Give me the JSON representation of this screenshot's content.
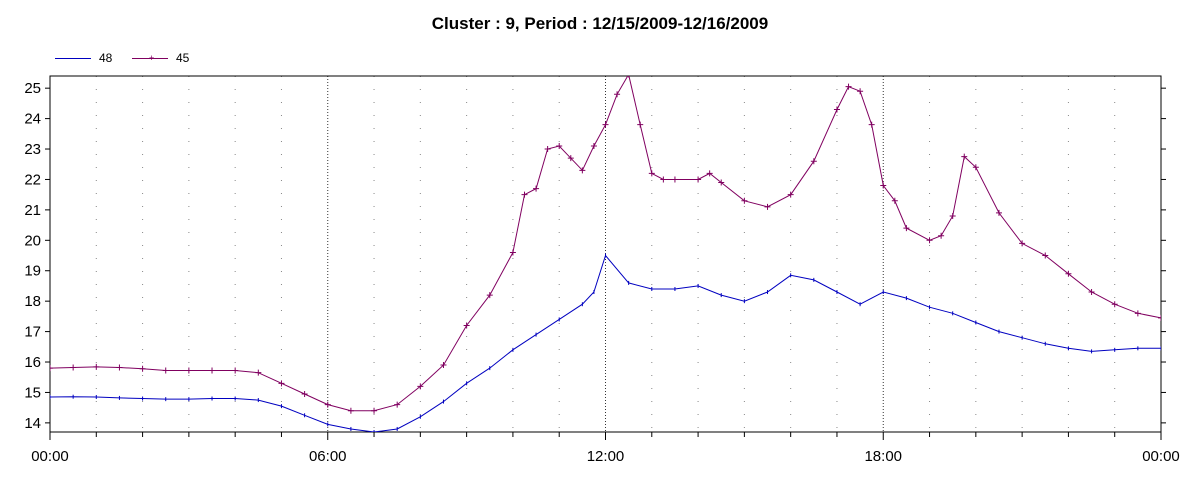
{
  "chart_data": {
    "type": "line",
    "title": "Cluster : 9, Period : 12/15/2009-12/16/2009",
    "xlabel": "",
    "ylabel": "",
    "x_ticks": [
      "00:00",
      "06:00",
      "12:00",
      "18:00",
      "00:00"
    ],
    "x_range_hours": [
      0,
      24
    ],
    "ylim": [
      13.7,
      25.4
    ],
    "y_ticks": [
      14,
      15,
      16,
      17,
      18,
      19,
      20,
      21,
      22,
      23,
      24,
      25
    ],
    "grid": "dotted",
    "legend_position": "top-left",
    "series": [
      {
        "name": "48",
        "color": "#0000c0",
        "marker": "small-tick",
        "points": [
          [
            0,
            14.85
          ],
          [
            0.5,
            14.86
          ],
          [
            1,
            14.85
          ],
          [
            1.5,
            14.82
          ],
          [
            2,
            14.8
          ],
          [
            2.5,
            14.78
          ],
          [
            3,
            14.78
          ],
          [
            3.5,
            14.8
          ],
          [
            4,
            14.8
          ],
          [
            4.5,
            14.75
          ],
          [
            5,
            14.55
          ],
          [
            5.5,
            14.25
          ],
          [
            6,
            13.95
          ],
          [
            6.5,
            13.8
          ],
          [
            7,
            13.7
          ],
          [
            7.5,
            13.8
          ],
          [
            8,
            14.2
          ],
          [
            8.5,
            14.7
          ],
          [
            9,
            15.3
          ],
          [
            9.5,
            15.8
          ],
          [
            10,
            16.4
          ],
          [
            10.5,
            16.9
          ],
          [
            11,
            17.4
          ],
          [
            11.5,
            17.9
          ],
          [
            11.75,
            18.3
          ],
          [
            12,
            19.5
          ],
          [
            12.5,
            18.6
          ],
          [
            13,
            18.4
          ],
          [
            13.5,
            18.4
          ],
          [
            14,
            18.5
          ],
          [
            14.5,
            18.2
          ],
          [
            15,
            18.0
          ],
          [
            15.5,
            18.3
          ],
          [
            16,
            18.85
          ],
          [
            16.5,
            18.7
          ],
          [
            17,
            18.3
          ],
          [
            17.5,
            17.9
          ],
          [
            18,
            18.3
          ],
          [
            18.5,
            18.1
          ],
          [
            19,
            17.8
          ],
          [
            19.5,
            17.6
          ],
          [
            20,
            17.3
          ],
          [
            20.5,
            17.0
          ],
          [
            21,
            16.8
          ],
          [
            21.5,
            16.6
          ],
          [
            22,
            16.45
          ],
          [
            22.5,
            16.35
          ],
          [
            23,
            16.4
          ],
          [
            23.5,
            16.45
          ],
          [
            24,
            16.45
          ]
        ]
      },
      {
        "name": "45",
        "color": "#800060",
        "marker": "plus",
        "points": [
          [
            0,
            15.8
          ],
          [
            0.5,
            15.82
          ],
          [
            1,
            15.84
          ],
          [
            1.5,
            15.82
          ],
          [
            2,
            15.78
          ],
          [
            2.5,
            15.72
          ],
          [
            3,
            15.72
          ],
          [
            3.5,
            15.72
          ],
          [
            4,
            15.72
          ],
          [
            4.5,
            15.65
          ],
          [
            5,
            15.3
          ],
          [
            5.5,
            14.95
          ],
          [
            6,
            14.6
          ],
          [
            6.5,
            14.4
          ],
          [
            7,
            14.4
          ],
          [
            7.5,
            14.6
          ],
          [
            8,
            15.2
          ],
          [
            8.5,
            15.9
          ],
          [
            9,
            17.2
          ],
          [
            9.5,
            18.2
          ],
          [
            10,
            19.6
          ],
          [
            10.25,
            21.5
          ],
          [
            10.5,
            21.7
          ],
          [
            10.75,
            23.0
          ],
          [
            11,
            23.1
          ],
          [
            11.25,
            22.7
          ],
          [
            11.5,
            22.3
          ],
          [
            11.75,
            23.1
          ],
          [
            12,
            23.8
          ],
          [
            12.25,
            24.8
          ],
          [
            12.5,
            25.45
          ],
          [
            12.75,
            23.8
          ],
          [
            13,
            22.2
          ],
          [
            13.25,
            22.0
          ],
          [
            13.5,
            22.0
          ],
          [
            14,
            22.0
          ],
          [
            14.25,
            22.2
          ],
          [
            14.5,
            21.9
          ],
          [
            15,
            21.3
          ],
          [
            15.5,
            21.1
          ],
          [
            16,
            21.5
          ],
          [
            16.5,
            22.6
          ],
          [
            17,
            24.3
          ],
          [
            17.25,
            25.05
          ],
          [
            17.5,
            24.9
          ],
          [
            17.75,
            23.8
          ],
          [
            18,
            21.8
          ],
          [
            18.25,
            21.3
          ],
          [
            18.5,
            20.4
          ],
          [
            19,
            20.0
          ],
          [
            19.25,
            20.15
          ],
          [
            19.5,
            20.8
          ],
          [
            19.75,
            22.75
          ],
          [
            20,
            22.4
          ],
          [
            20.5,
            20.9
          ],
          [
            21,
            19.9
          ],
          [
            21.5,
            19.5
          ],
          [
            22,
            18.9
          ],
          [
            22.5,
            18.3
          ],
          [
            23,
            17.9
          ],
          [
            23.5,
            17.6
          ],
          [
            24,
            17.45
          ]
        ]
      }
    ]
  }
}
